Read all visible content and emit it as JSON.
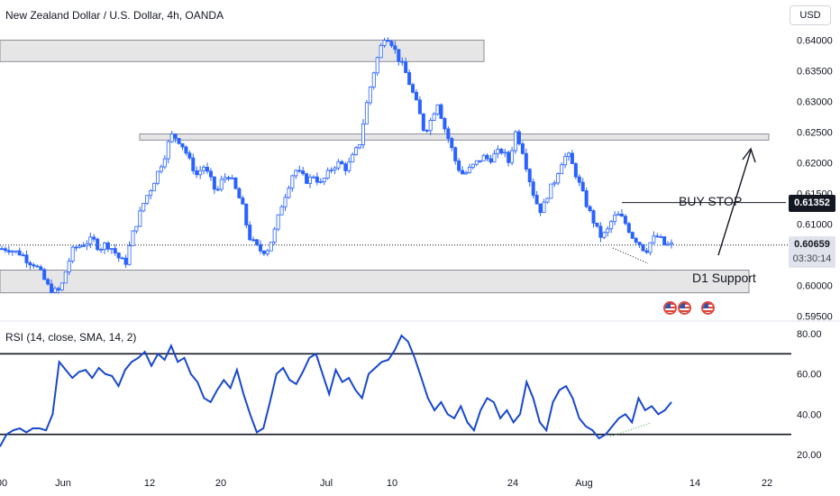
{
  "header": {
    "title": "New Zealand Dollar / U.S. Dollar, 4h, OANDA",
    "currency": "USD"
  },
  "annotations": {
    "buy_stop_label": "BUY STOP",
    "buy_stop_price": "0.61352",
    "support_label": "D1 Support"
  },
  "last_price": {
    "value": "0.60659",
    "countdown": "03:30:14"
  },
  "events": [
    {
      "icon": "us-flag-icon"
    },
    {
      "icon": "us-flag-icon"
    },
    {
      "icon": "us-flag-icon"
    }
  ],
  "colors": {
    "candle": "#2962ff",
    "rsi": "#1848cc",
    "zone": "#e6e6e6"
  },
  "chart_data": [
    {
      "type": "candlestick",
      "title": "New Zealand Dollar / U.S. Dollar, 4h, OANDA",
      "x_ticks": [
        "00",
        "Jun",
        "12",
        "20",
        "Jul",
        "10",
        "24",
        "Aug",
        "14",
        "22"
      ],
      "y_ticks": [
        "0.64000",
        "0.63500",
        "0.63000",
        "0.62500",
        "0.62000",
        "0.61500",
        "0.61000",
        "0.60500",
        "0.60000",
        "0.59500"
      ],
      "ylim": [
        0.5945,
        0.6425
      ],
      "zones": [
        {
          "from": 0.6365,
          "to": 0.64
        },
        {
          "from": 0.6237,
          "to": 0.6247
        },
        {
          "from": 0.5988,
          "to": 0.6025,
          "label": "D1 Support"
        }
      ],
      "buy_stop": 0.61352,
      "last": 0.60659,
      "path": [
        [
          0.606,
          0.606
        ],
        [
          0.6055,
          0.6052
        ],
        [
          0.604,
          0.6035
        ],
        [
          0.602,
          0.6
        ],
        [
          0.599,
          0.5992
        ],
        [
          0.603,
          0.606
        ],
        [
          0.6065,
          0.607
        ],
        [
          0.6075,
          0.606
        ],
        [
          0.6068,
          0.606
        ],
        [
          0.6045,
          0.6035
        ],
        [
          0.608,
          0.611
        ],
        [
          0.614,
          0.616
        ],
        [
          0.6185,
          0.621
        ],
        [
          0.6245,
          0.624
        ],
        [
          0.6225,
          0.62
        ],
        [
          0.618,
          0.6195
        ],
        [
          0.6175,
          0.615
        ],
        [
          0.6175,
          0.618
        ],
        [
          0.6155,
          0.613
        ],
        [
          0.608,
          0.6065
        ],
        [
          0.6055,
          0.606
        ],
        [
          0.609,
          0.613
        ],
        [
          0.616,
          0.619
        ],
        [
          0.618,
          0.617
        ],
        [
          0.618,
          0.6165
        ],
        [
          0.618,
          0.6195
        ],
        [
          0.62,
          0.619
        ],
        [
          0.621,
          0.623
        ],
        [
          0.629,
          0.634
        ],
        [
          0.638,
          0.641
        ],
        [
          0.6395,
          0.637
        ],
        [
          0.635,
          0.632
        ],
        [
          0.629,
          0.625
        ],
        [
          0.627,
          0.63
        ],
        [
          0.626,
          0.623
        ],
        [
          0.6195,
          0.618
        ],
        [
          0.619,
          0.62
        ],
        [
          0.621,
          0.6205
        ],
        [
          0.6215,
          0.622
        ],
        [
          0.62,
          0.625
        ],
        [
          0.6225,
          0.618
        ],
        [
          0.614,
          0.612
        ],
        [
          0.615,
          0.617
        ],
        [
          0.62,
          0.6215
        ],
        [
          0.619,
          0.616
        ],
        [
          0.613,
          0.6105
        ],
        [
          0.608,
          0.6085
        ],
        [
          0.611,
          0.6115
        ],
        [
          0.61,
          0.608
        ],
        [
          0.607,
          0.6055
        ],
        [
          0.6075,
          0.608
        ],
        [
          0.6065,
          0.6066
        ]
      ]
    },
    {
      "type": "line",
      "title": "RSI (14, close, SMA, 14, 2)",
      "x_ticks": [
        "00",
        "Jun",
        "12",
        "20",
        "Jul",
        "10",
        "24",
        "Aug",
        "14",
        "22"
      ],
      "y_ticks": [
        "80.00",
        "60.00",
        "40.00",
        "20.00"
      ],
      "ylim": [
        16,
        84
      ],
      "hlines": [
        70,
        30
      ],
      "values": [
        24,
        30,
        32,
        33,
        31,
        33,
        33,
        32,
        40,
        66,
        62,
        58,
        61,
        62,
        58,
        63,
        60,
        59,
        54,
        62,
        66,
        68,
        71,
        64,
        70,
        67,
        74,
        66,
        68,
        60,
        56,
        48,
        46,
        52,
        57,
        53,
        62,
        50,
        40,
        31,
        33,
        46,
        60,
        63,
        57,
        55,
        61,
        68,
        70,
        60,
        50,
        62,
        56,
        58,
        52,
        48,
        60,
        63,
        66,
        67,
        72,
        79,
        76,
        68,
        58,
        48,
        42,
        46,
        40,
        38,
        44,
        36,
        32,
        42,
        48,
        46,
        38,
        42,
        36,
        40,
        56,
        48,
        36,
        32,
        46,
        52,
        54,
        48,
        38,
        34,
        32,
        28,
        30,
        34,
        38,
        40,
        36,
        48,
        42,
        44,
        40,
        42,
        46
      ]
    }
  ]
}
